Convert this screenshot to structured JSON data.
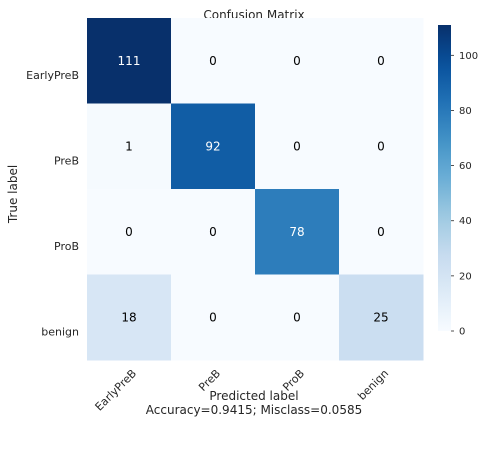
{
  "chart_data": {
    "type": "heatmap",
    "title": "Confusion Matrix",
    "xlabel": "Predicted label",
    "xlabel_sub": "Accuracy=0.9415; Misclass=0.0585",
    "ylabel": "True label",
    "x_categories": [
      "EarlyPreB",
      "PreB",
      "ProB",
      "benign"
    ],
    "y_categories": [
      "EarlyPreB",
      "PreB",
      "ProB",
      "benign"
    ],
    "matrix": [
      [
        111,
        0,
        0,
        0
      ],
      [
        1,
        92,
        0,
        0
      ],
      [
        0,
        0,
        78,
        0
      ],
      [
        18,
        0,
        0,
        25
      ]
    ],
    "colormap": "Blues",
    "colorbar": {
      "range": [
        0,
        111
      ],
      "ticks": [
        0,
        20,
        40,
        60,
        80,
        100
      ]
    },
    "grid": false
  },
  "colors": {
    "low": "#f7fbff",
    "high": "#08306b",
    "text_dark": "#000000",
    "text_light": "#ffffff"
  }
}
